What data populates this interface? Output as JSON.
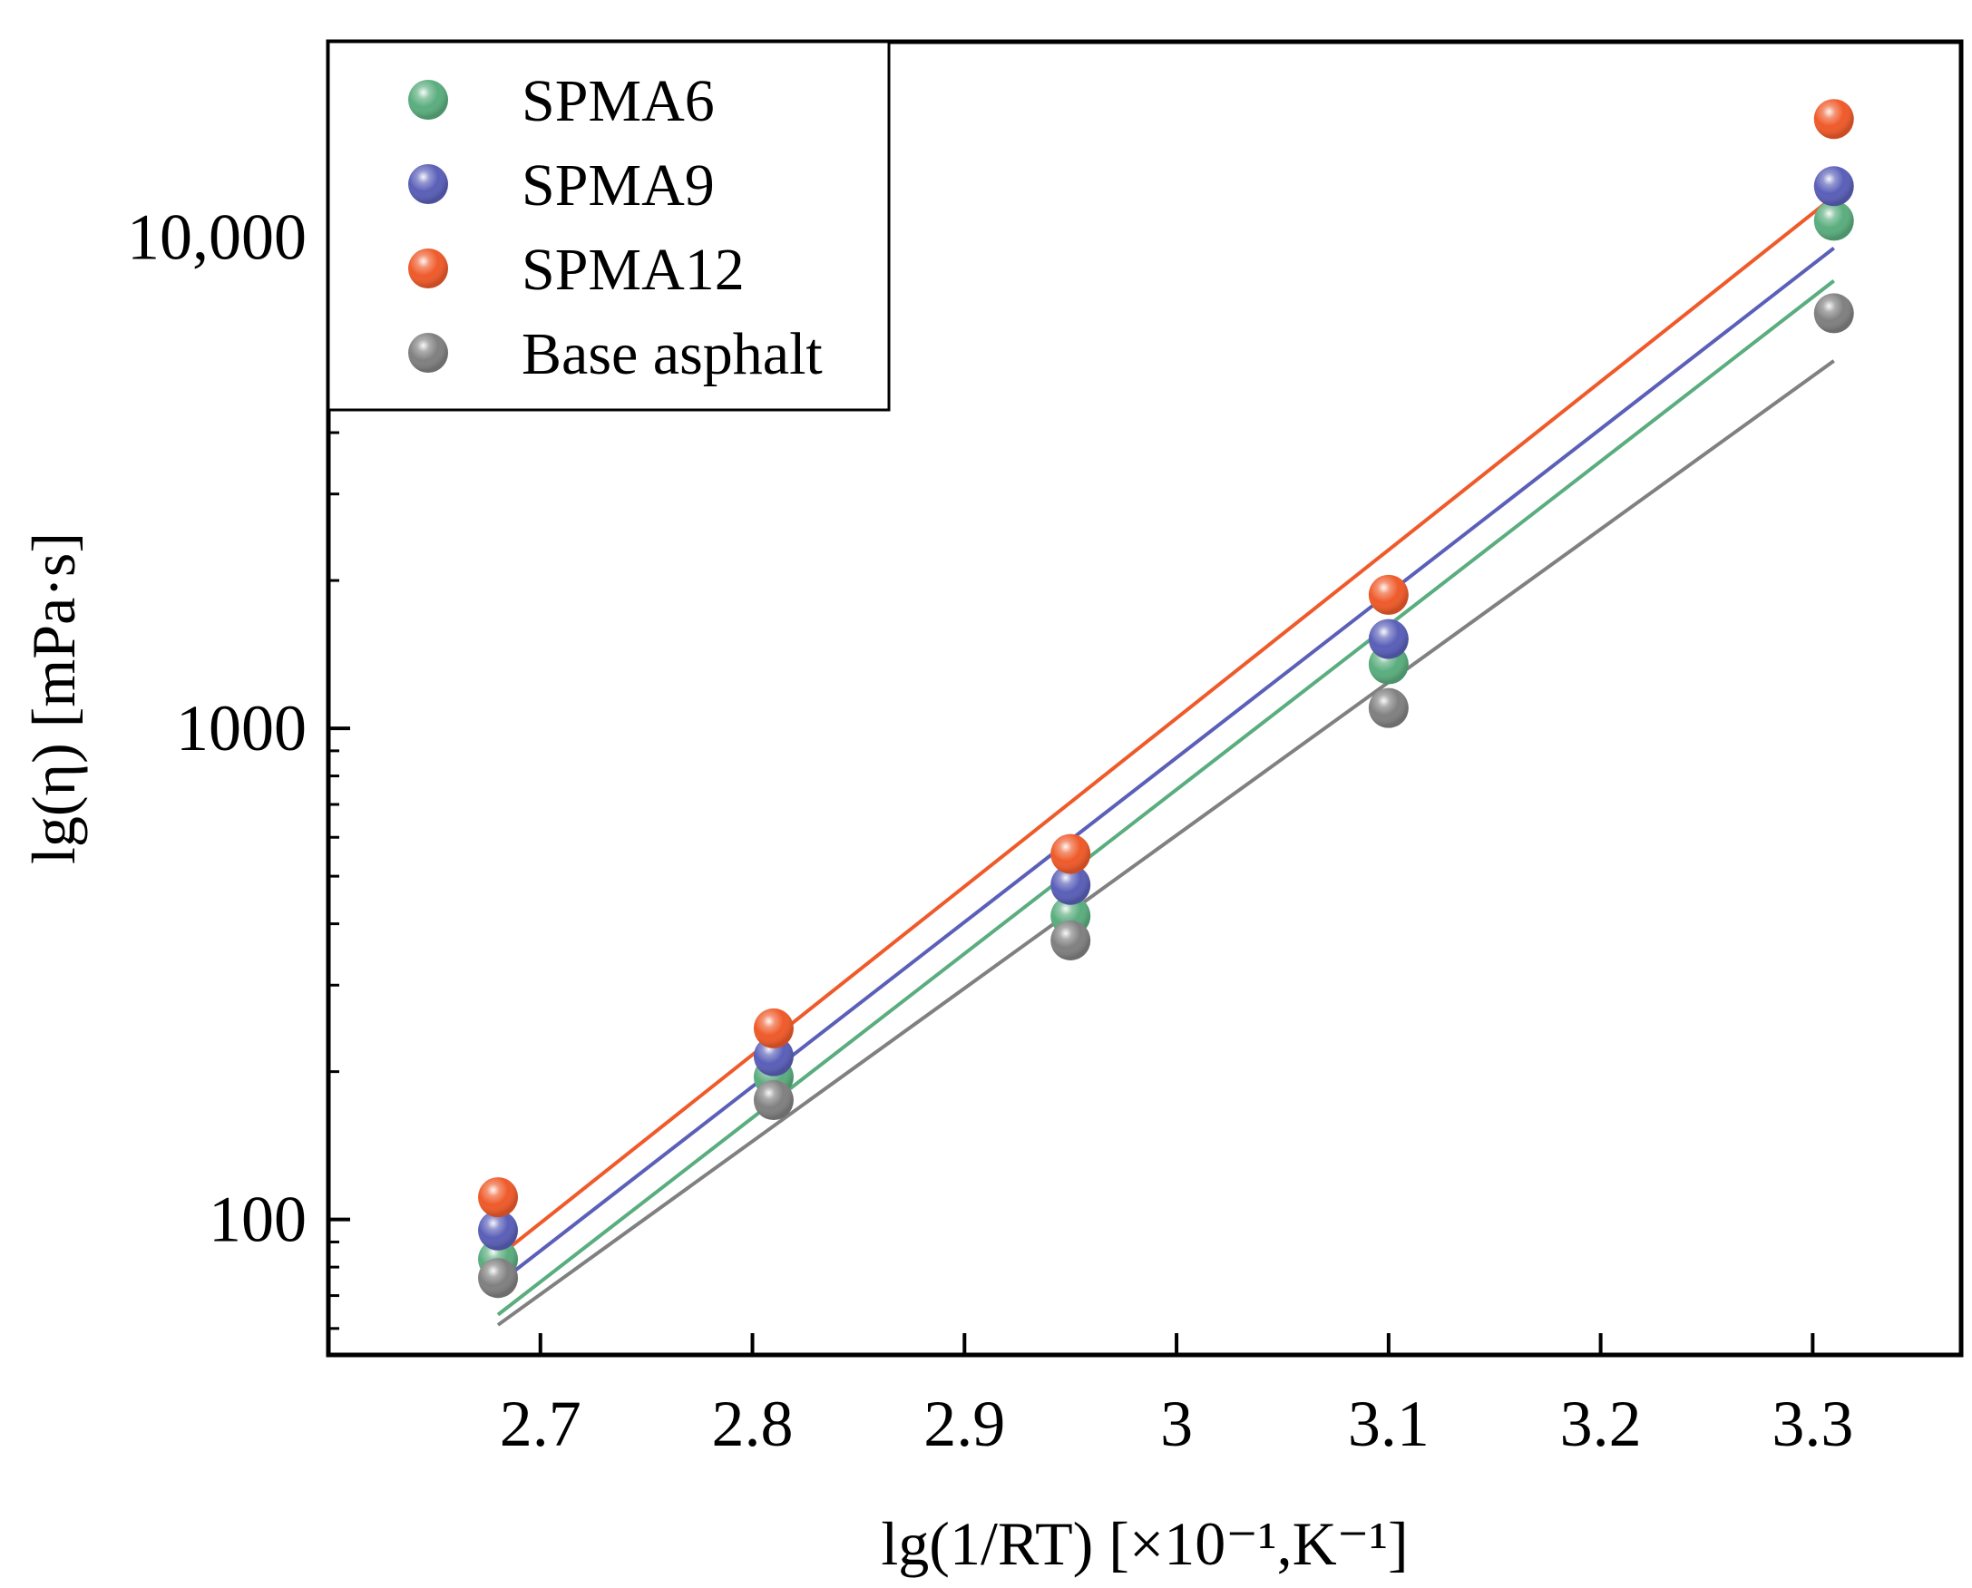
{
  "chart_data": {
    "type": "scatter",
    "title": "",
    "xlabel": "lg(1/RT) [×10⁻¹,K⁻¹]",
    "ylabel": "lg(η) [mPa·s]",
    "x_scale": "linear",
    "y_scale": "log",
    "xlim": [
      2.6,
      3.37
    ],
    "ylim": [
      53,
      25000
    ],
    "x_ticks": [
      2.7,
      2.8,
      2.9,
      3.0,
      3.1,
      3.2,
      3.3
    ],
    "x_tick_labels": [
      "2.7",
      "2.8",
      "2.9",
      "3",
      "3.1",
      "3.2",
      "3.3"
    ],
    "y_ticks": [
      100,
      1000,
      10000
    ],
    "y_tick_labels": [
      "100",
      "1000",
      "10,000"
    ],
    "grid": false,
    "legend_position": "top-left",
    "x": [
      2.68,
      2.81,
      2.95,
      3.1,
      3.31
    ],
    "series": [
      {
        "name": "SPMA6",
        "color": "#5aad7e",
        "values": [
          83,
          195,
          415,
          1350,
          10800
        ],
        "fit": [
          [
            2.68,
            64
          ],
          [
            3.31,
            8150
          ]
        ]
      },
      {
        "name": "SPMA9",
        "color": "#5a5fb8",
        "values": [
          95,
          215,
          480,
          1520,
          12700
        ],
        "fit": [
          [
            2.68,
            74
          ],
          [
            3.31,
            9500
          ]
        ]
      },
      {
        "name": "SPMA12",
        "color": "#ef5a2a",
        "values": [
          111,
          245,
          555,
          1870,
          17400
        ],
        "fit": [
          [
            2.68,
            84
          ],
          [
            3.31,
            12100
          ]
        ]
      },
      {
        "name": "Base asphalt",
        "color": "#808080",
        "values": [
          76,
          175,
          370,
          1100,
          7000
        ],
        "fit": [
          [
            2.68,
            61
          ],
          [
            3.31,
            5600
          ]
        ]
      }
    ]
  }
}
